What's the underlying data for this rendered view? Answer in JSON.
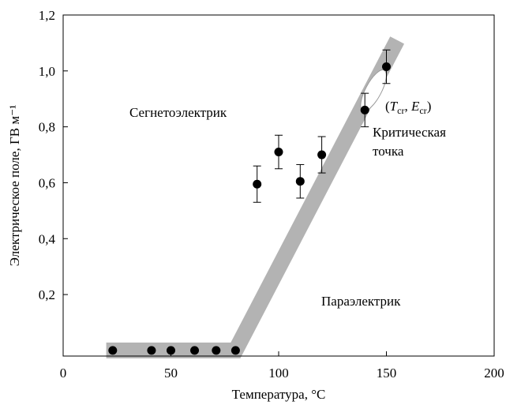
{
  "chart_data": {
    "type": "scatter",
    "xlabel": "Температура, °C",
    "ylabel": "Электрическое поле, ГВ м⁻¹",
    "xlim": [
      0,
      200
    ],
    "ylim": [
      -0.02,
      1.2
    ],
    "x_ticks": [
      0,
      50,
      100,
      150,
      200
    ],
    "x_tick_labels": [
      "0",
      "50",
      "100",
      "150",
      "200"
    ],
    "y_ticks": [
      0.2,
      0.4,
      0.6,
      0.8,
      1.0,
      1.2
    ],
    "y_tick_labels": [
      "0,2",
      "0,4",
      "0,6",
      "0,8",
      "1,0",
      "1,2"
    ],
    "grid": false,
    "series": [
      {
        "points": [
          {
            "x": 23,
            "y": 0.0
          },
          {
            "x": 41,
            "y": 0.0
          },
          {
            "x": 50,
            "y": 0.0
          },
          {
            "x": 61,
            "y": 0.0
          },
          {
            "x": 71,
            "y": 0.0
          },
          {
            "x": 80,
            "y": 0.0
          },
          {
            "x": 90,
            "y": 0.595,
            "err": 0.065
          },
          {
            "x": 100,
            "y": 0.71,
            "err": 0.06
          },
          {
            "x": 110,
            "y": 0.605,
            "err": 0.06
          },
          {
            "x": 120,
            "y": 0.7,
            "err": 0.065
          },
          {
            "x": 140,
            "y": 0.86,
            "err": 0.06
          },
          {
            "x": 150,
            "y": 1.015,
            "err": 0.06
          }
        ]
      }
    ],
    "boundary_band": [
      [
        20,
        0.0
      ],
      [
        80,
        0.0
      ],
      [
        155,
        1.11
      ]
    ],
    "critical_point": {
      "x": 144,
      "y": 0.93
    },
    "annotations": {
      "ferro": "Сегнетоэлектрик",
      "para": "Параэлектрик",
      "critical_line1": "Критическая",
      "critical_line2": "точка"
    }
  }
}
